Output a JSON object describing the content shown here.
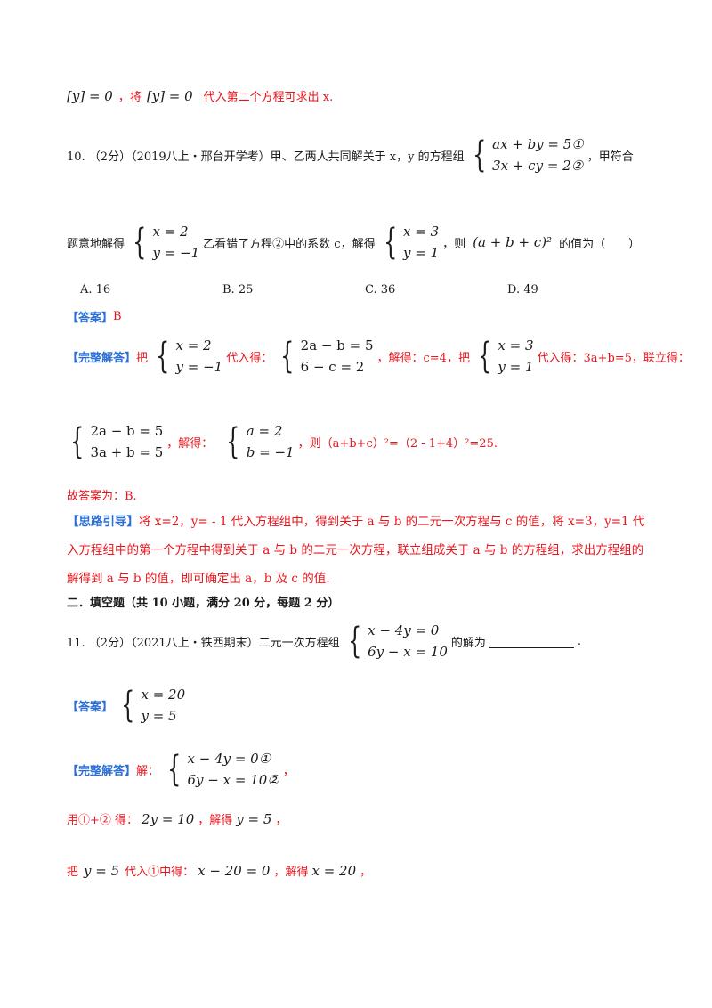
{
  "top": {
    "eq_left": "[y] = 0",
    "comma_jiang": "，将",
    "eq_mid": "[y] = 0",
    "tail": "代入第二个方程可求出 x."
  },
  "q10": {
    "stem_prefix": "10. （2分）（2019八上・邢台开学考）甲、乙两人共同解关于 x，y 的方程组",
    "system_a": [
      "ax + by = 5①",
      "3x + cy = 2②"
    ],
    "stem_suffix": "，甲符合",
    "line2_prefix": "题意地解得",
    "system_b": [
      "x = 2",
      "y = −1"
    ],
    "line2_mid": "乙看错了方程②中的系数 c，解得",
    "system_c": [
      "x = 3",
      "y = 1"
    ],
    "line2_ze": "，则",
    "expr": "(a + b + c)²",
    "line2_suffix": "的值为（　　）",
    "options": [
      "A. 16",
      "B. 25",
      "C. 36",
      "D. 49"
    ],
    "answer_label": "【答案】",
    "answer_value": "B",
    "full_label": "【完整解答】",
    "full_ba": "把",
    "full_sys1": [
      "x = 2",
      "y = −1"
    ],
    "full_daide": "代入得：",
    "full_sys2": [
      "2a − b = 5",
      "6 − c = 2"
    ],
    "full_jiede": "，解得：c=4，把",
    "full_sys3": [
      "x = 3",
      "y = 1"
    ],
    "full_tail": "代入得：3a+b=5，联立得：",
    "full_sys4": [
      "2a − b = 5",
      "3a + b = 5"
    ],
    "full_jiede2": "，解得：",
    "full_sys5": [
      "a = 2",
      "b = −1"
    ],
    "full_result": "，则（a+b+c）²=（2 - 1+4）²=25.",
    "conclusion": "故答案为：B.",
    "hint_label": "【思路引导】",
    "hint_text": "将 x=2，y= - 1 代入方程组中，得到关于 a 与 b 的二元一次方程与 c 的值，将 x=3，y=1 代入方程组中的第一个方程中得到关于 a 与 b 的二元一次方程，联立组成关于 a 与 b 的方程组，求出方程组的解得到 a 与 b 的值，即可确定出 a，b 及 c 的值."
  },
  "section2": {
    "heading": "二．填空题（共 10 小题，满分 20 分，每题 2 分）"
  },
  "q11": {
    "stem_prefix": "11. （2分）（2021八上・铁西期末）二元一次方程组",
    "system": [
      "x − 4y = 0",
      "6y − x = 10"
    ],
    "stem_suffix": "的解为",
    "stem_end": ".",
    "answer_label": "【答案】",
    "answer_system": [
      "x = 20",
      "y = 5"
    ],
    "full_label": "【完整解答】",
    "full_jie": "解：",
    "full_system": [
      "x − 4y = 0①",
      "6y − x = 10②"
    ],
    "full_comma": "，",
    "step1_prefix": "用①+② 得：",
    "step1_eq": "2y = 10",
    "step1_mid": "，解得",
    "step1_res": "y = 5",
    "step1_end": "，",
    "step2_prefix": "把",
    "step2_eq0": "y = 5",
    "step2_mid": "代入①中得：",
    "step2_eq": "x − 20 = 0",
    "step2_mid2": "，解得",
    "step2_res": "x = 20",
    "step2_end": "，"
  }
}
